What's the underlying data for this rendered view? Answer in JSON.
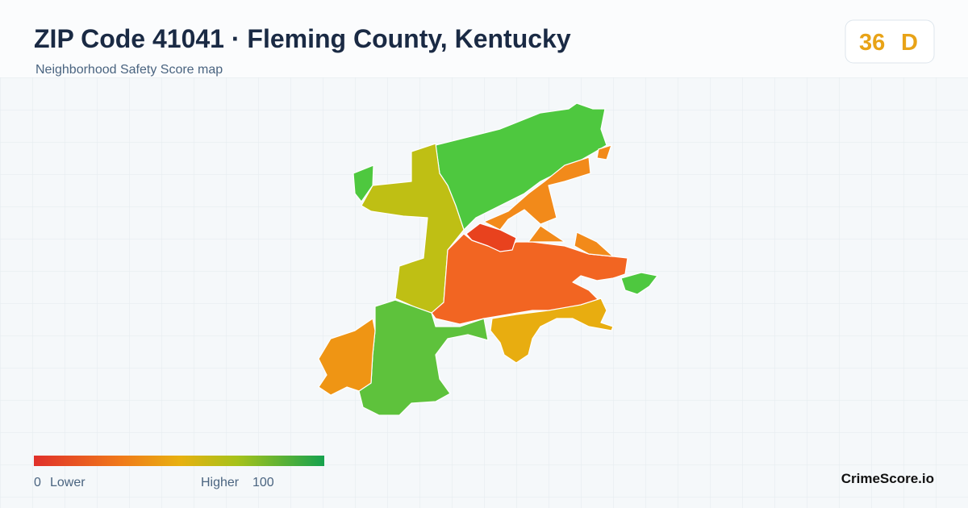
{
  "header": {
    "title": "ZIP Code 41041 · Fleming County, Kentucky",
    "subtitle": "Neighborhood Safety Score map"
  },
  "score": {
    "value": 36,
    "grade": "D"
  },
  "legend": {
    "min": 0,
    "min_label": "Lower",
    "max_label": "Higher",
    "max": 100
  },
  "brand": "CrimeScore.io"
}
